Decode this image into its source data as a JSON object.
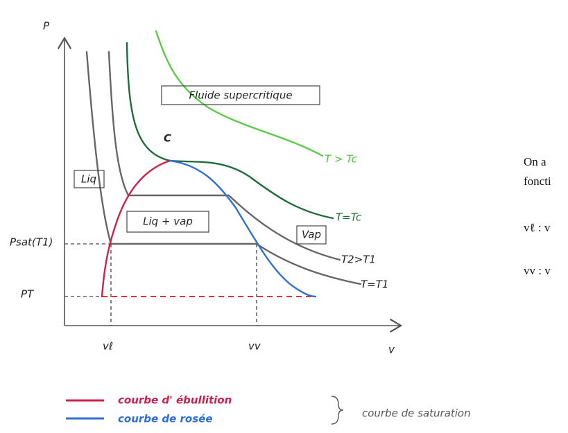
{
  "axes": {
    "y_label": "P",
    "x_label": "v"
  },
  "regions": {
    "supercritical": "Fluide supercritique",
    "liquid": "Liq",
    "mixture": "Liq + vap",
    "vapor": "Vap"
  },
  "critical_point": "C",
  "isotherms": {
    "above_critical": "T > Tc",
    "critical": "T=Tc",
    "t2": "T2>T1",
    "t1": "T=T1"
  },
  "pressures": {
    "saturation": "Psat(T1)",
    "triple": "PT"
  },
  "volumes": {
    "liquid": "vℓ",
    "vapor": "vv"
  },
  "legend": {
    "boiling": "courbe d' ébullition",
    "dew": "courbe de rosée",
    "saturation": "courbe de saturation"
  },
  "side_text": [
    "On a",
    "foncti",
    "vℓ : v",
    "vv : v"
  ]
}
